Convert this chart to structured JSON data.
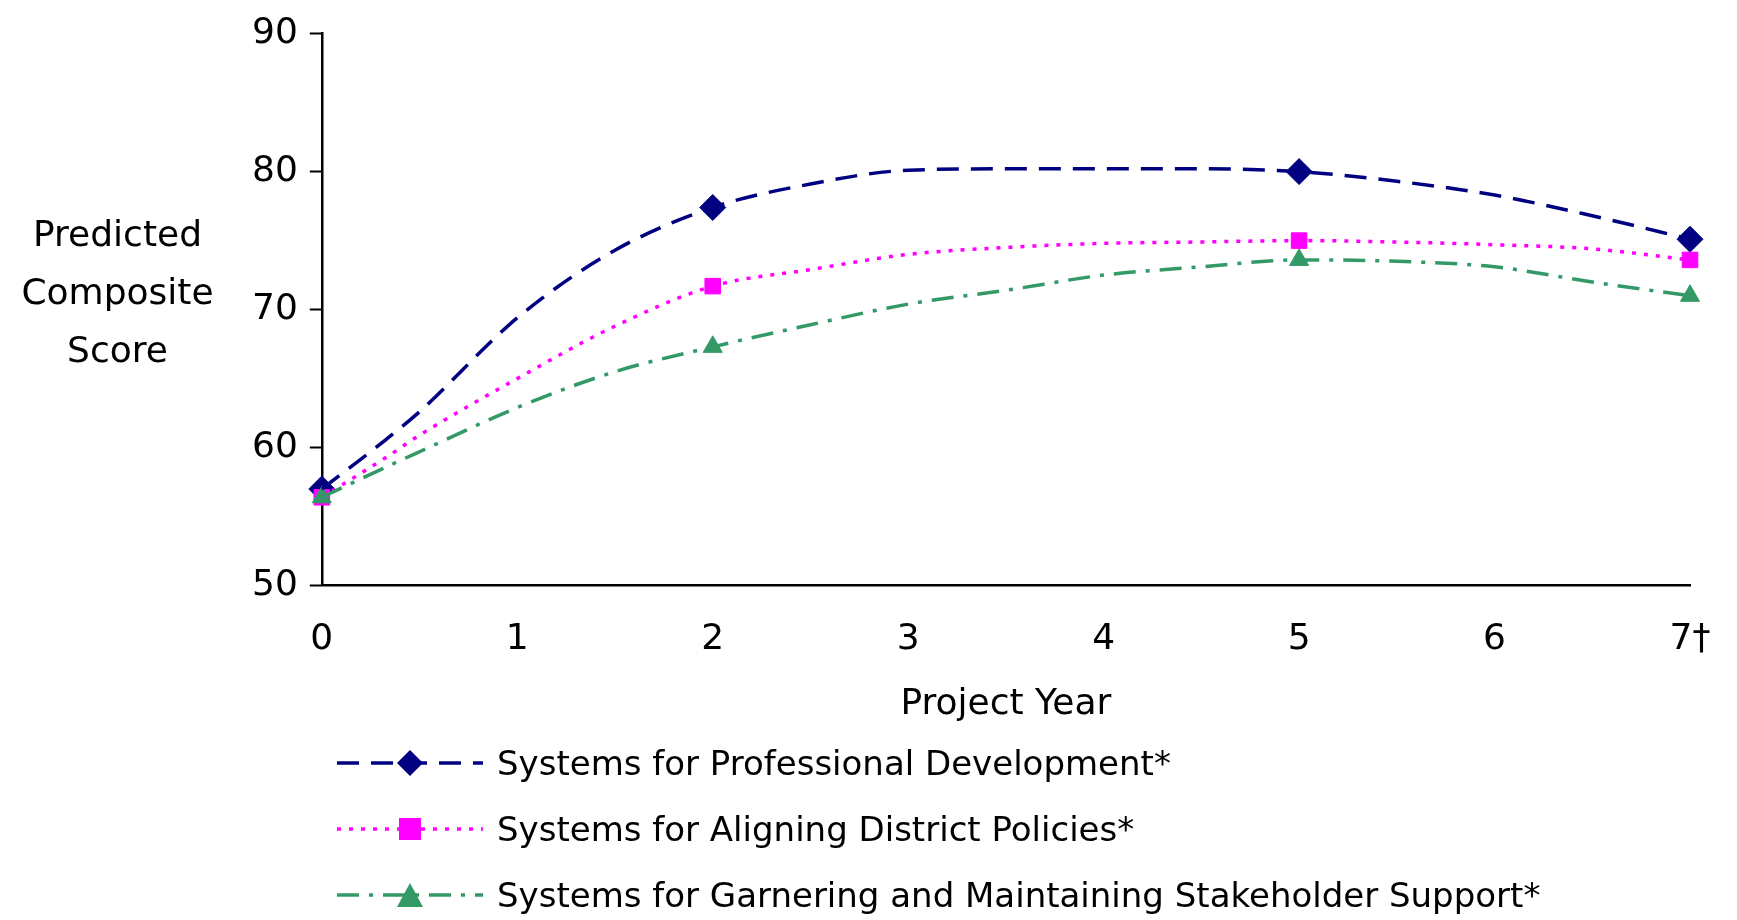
{
  "chart_data": {
    "type": "line",
    "xlabel": "Project Year",
    "ylabel": "Predicted Composite Score",
    "xlim": [
      0,
      7
    ],
    "xticks": [
      0,
      1,
      2,
      3,
      4,
      5,
      6,
      {
        "value": 7,
        "label": "7†"
      }
    ],
    "ylim": [
      50,
      90
    ],
    "yticks": [
      50,
      60,
      70,
      80,
      90
    ],
    "grid": false,
    "legend": "bottom",
    "series": [
      {
        "name": "Systems for Professional Development*",
        "type": "line",
        "color": "#000080",
        "line_style": "dashed",
        "marker": "none",
        "x": [
          0,
          0.33,
          0.5,
          1,
          1.5,
          2,
          2.5,
          3,
          3.5,
          4,
          4.5,
          5,
          5.5,
          6,
          6.5,
          7
        ],
        "values": [
          57,
          60.6,
          62.6,
          69.4,
          74.3,
          77.4,
          79.1,
          80.1,
          80.2,
          80.2,
          80.2,
          80,
          79.3,
          78.3,
          76.8,
          75.1
        ]
      },
      {
        "name": "Systems for Aligning District Policies*",
        "type": "line",
        "color": "#ff00ff",
        "line_style": "dotted",
        "marker": "none",
        "x": [
          0,
          0.33,
          0.5,
          1,
          1.5,
          2,
          2.5,
          3,
          3.5,
          4,
          4.5,
          5,
          5.5,
          6,
          6.5,
          7
        ],
        "values": [
          56.4,
          59.3,
          60.9,
          65,
          68.8,
          71.7,
          72.9,
          74,
          74.5,
          74.8,
          74.9,
          75,
          74.9,
          74.7,
          74.4,
          73.6
        ]
      },
      {
        "name": "Systems for Garnering and Maintaining Stakeholder Support*",
        "type": "line",
        "color": "#339966",
        "line_style": "dashdot",
        "marker": "none",
        "x": [
          0,
          0.33,
          0.5,
          1,
          1.5,
          2,
          2.5,
          3,
          3.5,
          4,
          4.5,
          5,
          5.5,
          6,
          6.5,
          7
        ],
        "values": [
          56.4,
          58.6,
          59.7,
          62.9,
          65.5,
          67.3,
          68.9,
          70.4,
          71.4,
          72.5,
          73.1,
          73.6,
          73.5,
          73.1,
          72,
          71
        ]
      },
      {
        "type": "scatter",
        "color": "#000080",
        "marker": "diamond",
        "x": [
          0,
          2,
          5,
          7
        ],
        "values": [
          57,
          77.4,
          80,
          75.1
        ]
      },
      {
        "type": "scatter",
        "color": "#ff00ff",
        "marker": "square",
        "x": [
          0,
          2,
          5,
          7
        ],
        "values": [
          56.4,
          71.7,
          75,
          73.6
        ]
      },
      {
        "type": "scatter",
        "color": "#339966",
        "marker": "triangle",
        "x": [
          0,
          2,
          5,
          7
        ],
        "values": [
          56.4,
          67.3,
          73.6,
          71
        ]
      }
    ]
  }
}
